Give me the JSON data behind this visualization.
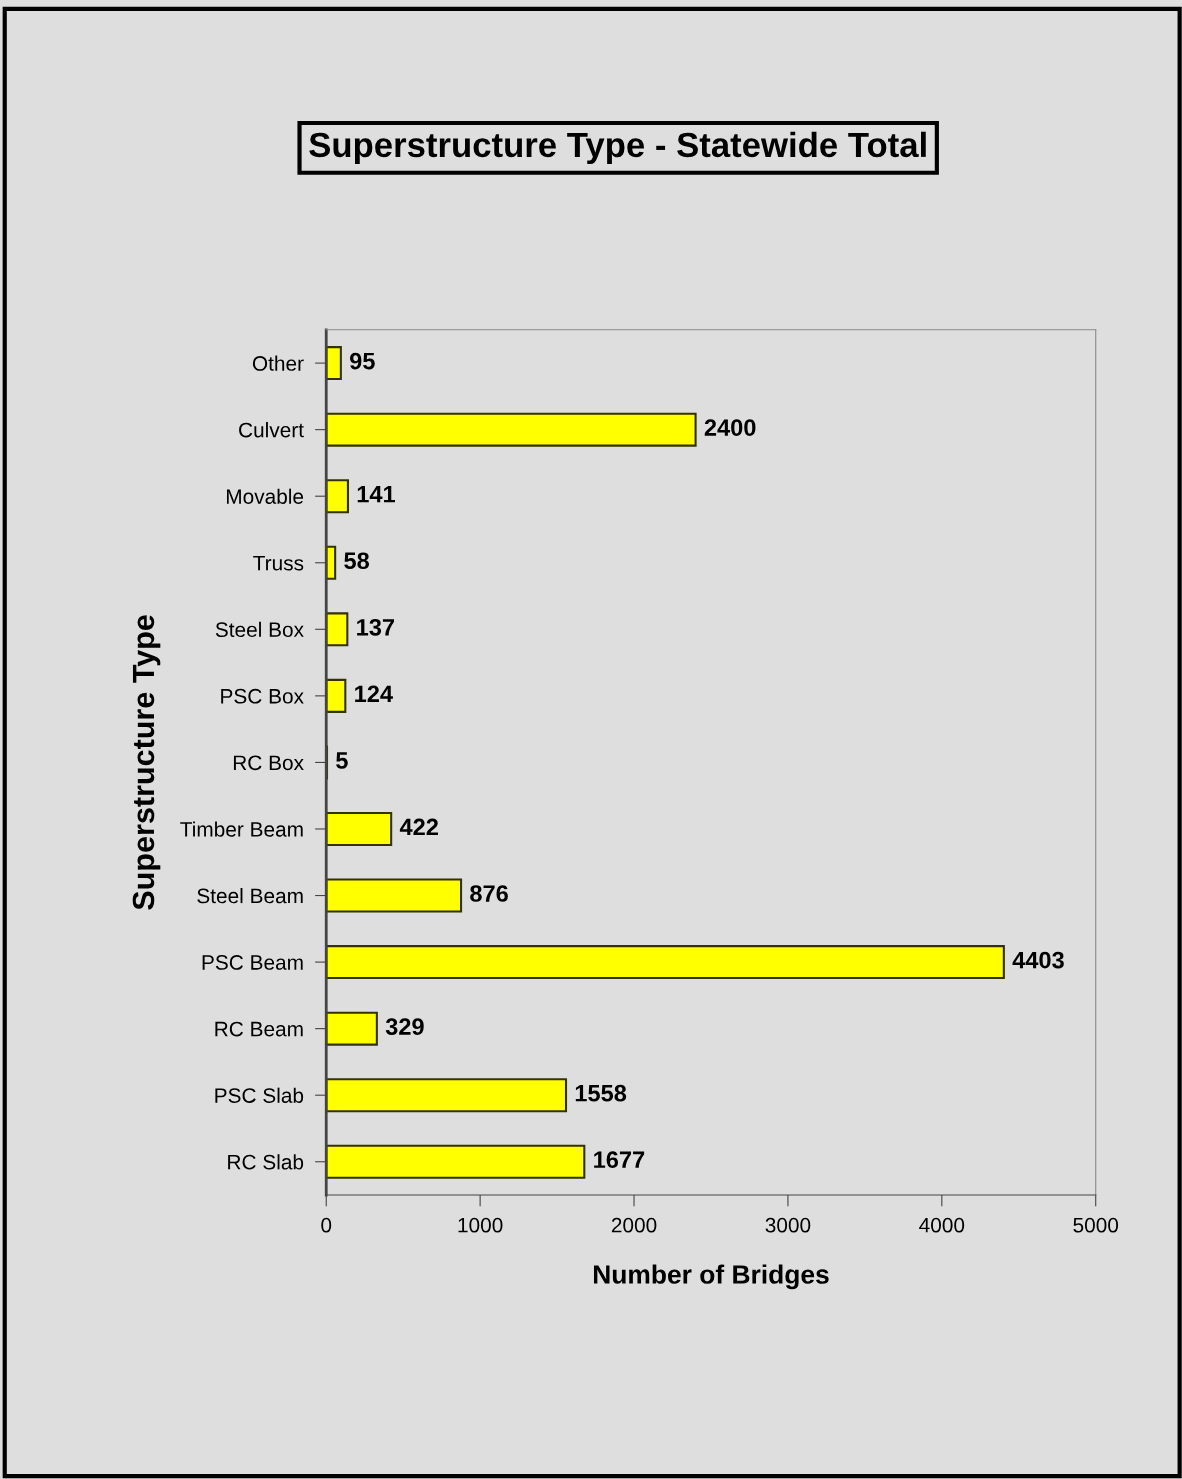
{
  "chart_data": {
    "type": "bar",
    "orientation": "horizontal",
    "title": "Superstructure Type - Statewide Total",
    "xlabel": "Number of Bridges",
    "ylabel": "Superstructure Type",
    "categories": [
      "Other",
      "Culvert",
      "Movable",
      "Truss",
      "Steel Box",
      "PSC Box",
      "RC Box",
      "Timber Beam",
      "Steel Beam",
      "PSC Beam",
      "RC Beam",
      "PSC Slab",
      "RC Slab"
    ],
    "values": [
      95,
      2400,
      141,
      58,
      137,
      124,
      5,
      422,
      876,
      4403,
      329,
      1558,
      1677
    ],
    "color": "#ffff00",
    "xlim": [
      0,
      5000
    ],
    "xticks": [
      0,
      1000,
      2000,
      3000,
      4000,
      5000
    ],
    "grid": false,
    "data_labels": true
  }
}
